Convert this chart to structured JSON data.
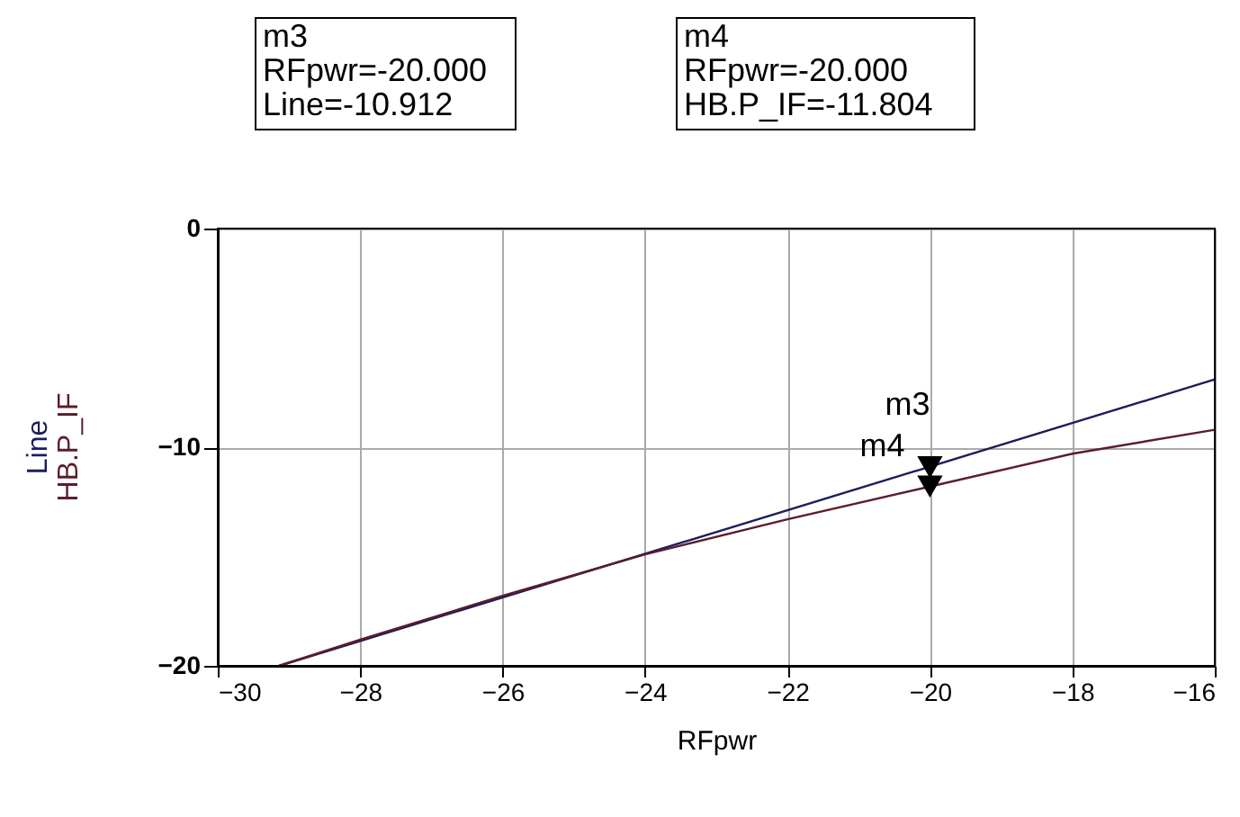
{
  "chart_data": {
    "type": "line",
    "xlabel": "RFpwr",
    "x": [
      -29.14,
      -16
    ],
    "series": [
      {
        "name": "Line",
        "color": "#1c1c5c",
        "values": [
          -20,
          -6.9
        ]
      },
      {
        "name": "HB.P_IF",
        "color": "#5c1c2c",
        "x": [
          -29.14,
          -28,
          -26,
          -24,
          -22,
          -20,
          -18,
          -16
        ],
        "values": [
          -20,
          -18.8,
          -16.8,
          -14.9,
          -13.3,
          -11.8,
          -10.3,
          -9.2
        ]
      },
      {
        "type": "scatter",
        "marker": "triangle",
        "color": "#000000",
        "x": [
          -20,
          -20
        ],
        "values": [
          -10.912,
          -11.804
        ]
      }
    ],
    "xlim": [
      -30,
      -16
    ],
    "xticks": [
      -30,
      -28,
      -26,
      -24,
      -22,
      -20,
      -18,
      -16
    ],
    "ylim": [
      -20,
      0
    ],
    "yticks": [
      -20,
      -10,
      0
    ],
    "grid": true,
    "legend": "left",
    "annotations": [
      "m3\nRFpwr=-20.000\nLine=-10.912",
      "m4\nRFpwr=-20.000\nHB.P_IF=-11.804",
      {
        "text": "m3",
        "x": -20,
        "y": -10.912
      },
      {
        "text": "m4",
        "x": -20,
        "y": -11.804
      }
    ]
  }
}
